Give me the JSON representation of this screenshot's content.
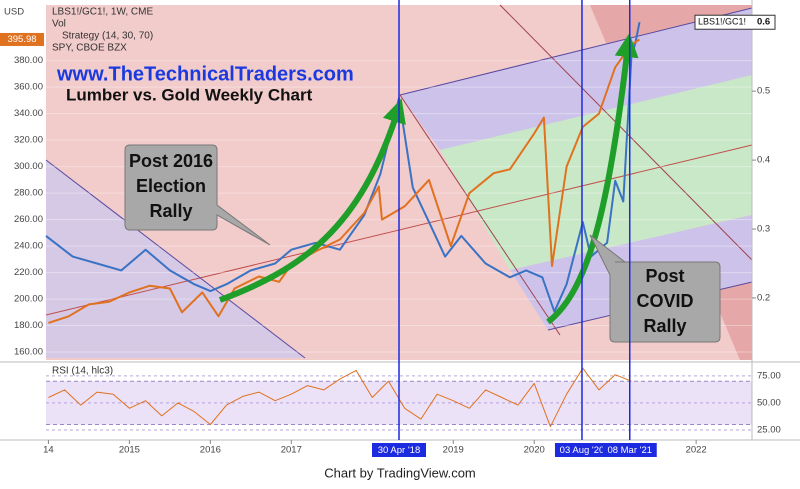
{
  "chart_data": [
    {
      "type": "line",
      "subtitle": "www.TheTechnicalTraders.com",
      "title": "Lumber vs. Gold Weekly Chart",
      "currency": "USD",
      "indicators": [
        "Vol",
        "Strategy (14, 30, 70)"
      ],
      "xlim": [
        2013.97,
        2022.69
      ],
      "xticks": [
        {
          "value": 2014,
          "label": "14"
        },
        2015,
        2016,
        2017,
        2019,
        2020,
        2022
      ],
      "ylim": [
        154,
        422
      ],
      "yticks": [
        {
          "value": 160,
          "label": "160.00"
        },
        {
          "value": 180,
          "label": "180.00"
        },
        {
          "value": 200,
          "label": "200.00"
        },
        {
          "value": 220,
          "label": "220.00"
        },
        {
          "value": 240,
          "label": "240.00"
        },
        {
          "value": 260,
          "label": "260.00"
        },
        {
          "value": 280,
          "label": "280.00"
        },
        {
          "value": 300,
          "label": "300.00"
        },
        {
          "value": 320,
          "label": "320.00"
        },
        {
          "value": 340,
          "label": "340.00"
        },
        {
          "value": 360,
          "label": "360.00"
        },
        {
          "value": 380,
          "label": "380.00"
        }
      ],
      "y2lim": [
        0.11,
        0.625
      ],
      "y2ticks": [
        0.2,
        0.3,
        0.4,
        0.5,
        0.6
      ],
      "series": [
        {
          "name": "LBS1!/GC1!, 1W, CME",
          "symbol": "LBS1!/GC1!",
          "color": "#3a72c4",
          "axis": "y2",
          "x": [
            2013.97,
            2014.3,
            2014.6,
            2014.9,
            2015.2,
            2015.5,
            2015.8,
            2016.0,
            2016.2,
            2016.5,
            2016.8,
            2017.0,
            2017.3,
            2017.6,
            2017.9,
            2018.1,
            2018.33,
            2018.5,
            2018.7,
            2018.9,
            2019.1,
            2019.4,
            2019.7,
            2019.9,
            2020.1,
            2020.25,
            2020.4,
            2020.6,
            2020.7,
            2020.9,
            2021.0,
            2021.1,
            2021.2,
            2021.25,
            2021.3
          ],
          "values": [
            0.29,
            0.26,
            0.25,
            0.24,
            0.27,
            0.24,
            0.22,
            0.21,
            0.22,
            0.24,
            0.25,
            0.27,
            0.28,
            0.27,
            0.32,
            0.38,
            0.49,
            0.36,
            0.31,
            0.26,
            0.29,
            0.25,
            0.23,
            0.24,
            0.23,
            0.18,
            0.22,
            0.31,
            0.26,
            0.28,
            0.37,
            0.34,
            0.55,
            0.57,
            0.6
          ]
        },
        {
          "name": "SPY, CBOE BZX",
          "color": "#e0711f",
          "axis": "y",
          "x": [
            2014.0,
            2014.25,
            2014.5,
            2014.75,
            2015.0,
            2015.25,
            2015.5,
            2015.65,
            2015.9,
            2016.1,
            2016.3,
            2016.6,
            2016.85,
            2017.0,
            2017.3,
            2017.6,
            2017.9,
            2018.08,
            2018.12,
            2018.4,
            2018.7,
            2018.97,
            2019.2,
            2019.5,
            2019.7,
            2020.0,
            2020.12,
            2020.22,
            2020.4,
            2020.6,
            2020.8,
            2021.0,
            2021.2,
            2021.3
          ],
          "values": [
            182,
            187,
            196,
            198,
            205,
            210,
            208,
            190,
            205,
            187,
            208,
            217,
            213,
            226,
            236,
            245,
            265,
            285,
            260,
            270,
            290,
            240,
            280,
            295,
            298,
            325,
            337,
            225,
            300,
            330,
            340,
            375,
            392,
            395.98
          ]
        }
      ],
      "markers": [
        {
          "x": 2018.33,
          "label": "30 Apr '18"
        },
        {
          "x": 2020.59,
          "label": "03 Aug '20"
        },
        {
          "x": 2021.18,
          "label": "08 Mar '21"
        }
      ],
      "annotations": [
        [
          "Post 2016",
          "Election",
          "Rally"
        ],
        [
          "Post",
          "COVID",
          "Rally"
        ]
      ],
      "footer": "Chart by TradingView.com"
    },
    {
      "type": "line",
      "title": "RSI (14, hlc3)",
      "xlim": [
        2013.97,
        2022.69
      ],
      "ylim": [
        18.5,
        85
      ],
      "yticks": [
        {
          "value": 25,
          "label": "25.00"
        },
        {
          "value": 50,
          "label": "50.00"
        },
        {
          "value": 75,
          "label": "75.00"
        }
      ],
      "band": [
        30,
        70
      ],
      "series": [
        {
          "name": "RSI",
          "color": "#e0711f",
          "x": [
            2014.0,
            2014.2,
            2014.4,
            2014.6,
            2014.8,
            2015.0,
            2015.2,
            2015.4,
            2015.6,
            2015.8,
            2016.0,
            2016.2,
            2016.4,
            2016.6,
            2016.8,
            2017.0,
            2017.2,
            2017.4,
            2017.6,
            2017.8,
            2018.0,
            2018.2,
            2018.4,
            2018.6,
            2018.8,
            2019.0,
            2019.2,
            2019.4,
            2019.6,
            2019.8,
            2020.0,
            2020.2,
            2020.4,
            2020.6,
            2020.8,
            2021.0,
            2021.2
          ],
          "values": [
            55,
            62,
            48,
            60,
            58,
            45,
            52,
            38,
            50,
            42,
            30,
            48,
            56,
            60,
            52,
            58,
            66,
            62,
            72,
            80,
            55,
            70,
            45,
            35,
            58,
            52,
            45,
            62,
            55,
            48,
            68,
            28,
            58,
            82,
            62,
            76,
            70
          ]
        }
      ]
    }
  ]
}
